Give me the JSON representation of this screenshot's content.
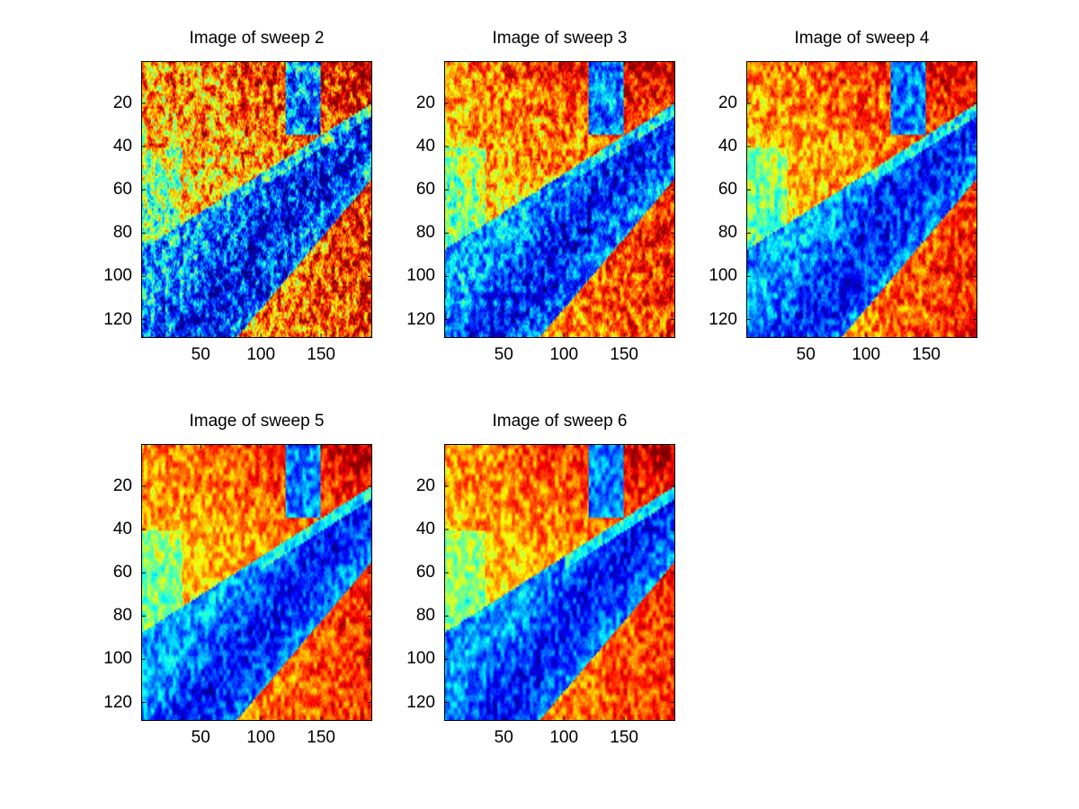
{
  "chart_data": [
    {
      "type": "heatmap",
      "title": "Image of sweep  2",
      "xlabel": "",
      "ylabel": "",
      "xlim": [
        0.5,
        192.5
      ],
      "ylim": [
        128.5,
        0.5
      ],
      "x_ticks": [
        50,
        100,
        150
      ],
      "x_tick_labels": [
        "50",
        "100",
        "150"
      ],
      "y_ticks": [
        20,
        40,
        60,
        80,
        100,
        120
      ],
      "y_tick_labels": [
        "20",
        "40",
        "60",
        "80",
        "100",
        "120"
      ],
      "colormap": "jet",
      "noise": 0.5,
      "image_size": [
        128,
        192
      ]
    },
    {
      "type": "heatmap",
      "title": "Image of sweep  3",
      "xlabel": "",
      "ylabel": "",
      "xlim": [
        0.5,
        192.5
      ],
      "ylim": [
        128.5,
        0.5
      ],
      "x_ticks": [
        50,
        100,
        150
      ],
      "x_tick_labels": [
        "50",
        "100",
        "150"
      ],
      "y_ticks": [
        20,
        40,
        60,
        80,
        100,
        120
      ],
      "y_tick_labels": [
        "20",
        "40",
        "60",
        "80",
        "100",
        "120"
      ],
      "colormap": "jet",
      "noise": 0.3,
      "image_size": [
        128,
        192
      ]
    },
    {
      "type": "heatmap",
      "title": "Image of sweep  4",
      "xlabel": "",
      "ylabel": "",
      "xlim": [
        0.5,
        192.5
      ],
      "ylim": [
        128.5,
        0.5
      ],
      "x_ticks": [
        50,
        100,
        150
      ],
      "x_tick_labels": [
        "50",
        "100",
        "150"
      ],
      "y_ticks": [
        20,
        40,
        60,
        80,
        100,
        120
      ],
      "y_tick_labels": [
        "20",
        "40",
        "60",
        "80",
        "100",
        "120"
      ],
      "colormap": "jet",
      "noise": 0.22,
      "image_size": [
        128,
        192
      ]
    },
    {
      "type": "heatmap",
      "title": "Image of sweep  5",
      "xlabel": "",
      "ylabel": "",
      "xlim": [
        0.5,
        192.5
      ],
      "ylim": [
        128.5,
        0.5
      ],
      "x_ticks": [
        50,
        100,
        150
      ],
      "x_tick_labels": [
        "50",
        "100",
        "150"
      ],
      "y_ticks": [
        20,
        40,
        60,
        80,
        100,
        120
      ],
      "y_tick_labels": [
        "20",
        "40",
        "60",
        "80",
        "100",
        "120"
      ],
      "colormap": "jet",
      "noise": 0.17,
      "image_size": [
        128,
        192
      ]
    },
    {
      "type": "heatmap",
      "title": "Image of sweep  6",
      "xlabel": "",
      "ylabel": "",
      "xlim": [
        0.5,
        192.5
      ],
      "ylim": [
        128.5,
        0.5
      ],
      "x_ticks": [
        50,
        100,
        150
      ],
      "x_tick_labels": [
        "50",
        "100",
        "150"
      ],
      "y_ticks": [
        20,
        40,
        60,
        80,
        100,
        120
      ],
      "y_tick_labels": [
        "20",
        "40",
        "60",
        "80",
        "100",
        "120"
      ],
      "colormap": "jet",
      "noise": 0.15,
      "image_size": [
        128,
        192
      ]
    }
  ]
}
